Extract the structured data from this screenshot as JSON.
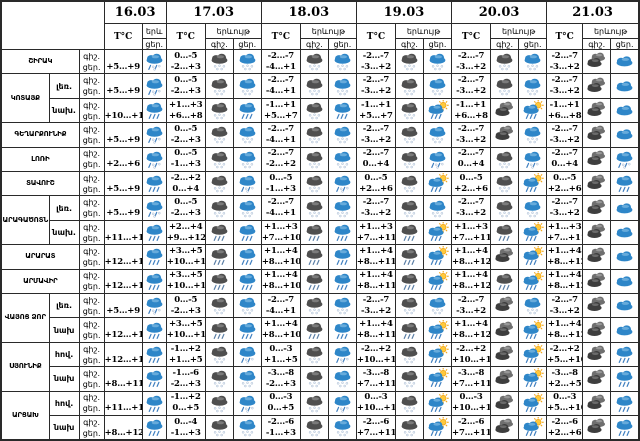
{
  "header": {
    "dates": [
      "16.03",
      "17.03",
      "18.03",
      "19.03",
      "20.03",
      "21.03"
    ],
    "temp_label": "T°C",
    "phenomenon_full": "երևույթ",
    "phenomenon_short": "երև",
    "night_abbr": "գիշ.",
    "day_abbr": "ցեր."
  },
  "icon_legend": {
    "r": "rain-cloud",
    "s": "snow-cloud",
    "rs": "sleet-cloud",
    "c": "cloud",
    "rd": "rain-cloud-dark",
    "sd": "snow-cloud-dark",
    "cd": "overcast-clouds-dark",
    "sr": "sun-rain-cloud"
  },
  "colors": {
    "cloud_blue": "#2e86c8",
    "cloud_dark": "#4f4f4f",
    "sun_yellow": "#ffc93d",
    "border": "#2a2a2a"
  },
  "rows": [
    {
      "region": "ՇԻՐԱԿ",
      "rowspan": 1,
      "sub": null,
      "cells": [
        {
          "day": "+5...+9",
          "day_icon": "rs"
        },
        {
          "night": "0...-5",
          "day": "-2...+3",
          "night_icon": "sd",
          "day_icon": "s"
        },
        {
          "night": "-2...-7",
          "day": "-4...+1",
          "night_icon": "sd",
          "day_icon": "s"
        },
        {
          "night": "-2...-7",
          "day": "-3...+2",
          "night_icon": "sd",
          "day_icon": "s"
        },
        {
          "night": "-2...-7",
          "day": "-3...+2",
          "night_icon": "sd",
          "day_icon": "s"
        },
        {
          "night": "-2...-7",
          "day": "-3...+2",
          "night_icon": "cd",
          "day_icon": "c"
        }
      ]
    },
    {
      "region": "ԿՈՏԱՅՔ",
      "rowspan": 2,
      "sub": "լեռ.",
      "cells": [
        {
          "day": "+5...+9",
          "day_icon": "rs"
        },
        {
          "night": "0...-5",
          "day": "-2...+3",
          "night_icon": "sd",
          "day_icon": "s"
        },
        {
          "night": "-2...-7",
          "day": "-4...+1",
          "night_icon": "sd",
          "day_icon": "s"
        },
        {
          "night": "-2...-7",
          "day": "-3...+2",
          "night_icon": "sd",
          "day_icon": "s"
        },
        {
          "night": "-2...-7",
          "day": "-3...+2",
          "night_icon": "sd",
          "day_icon": "s"
        },
        {
          "night": "-2...-7",
          "day": "-3...+2",
          "night_icon": "cd",
          "day_icon": "c"
        }
      ]
    },
    {
      "region": null,
      "rowspan": 1,
      "sub": "նախ.",
      "cells": [
        {
          "day": "+10...+12",
          "day_icon": "r"
        },
        {
          "night": "+1...+3",
          "day": "+6...+8",
          "night_icon": "sd",
          "day_icon": "r"
        },
        {
          "night": "-1...+1",
          "day": "+5...+7",
          "night_icon": "sd",
          "day_icon": "r"
        },
        {
          "night": "-1...+1",
          "day": "+5...+7",
          "night_icon": "sd",
          "day_icon": "sr"
        },
        {
          "night": "-1...+1",
          "day": "+6...+8",
          "night_icon": "cd",
          "day_icon": "sr"
        },
        {
          "night": "-1...+1",
          "day": "+6...+8",
          "night_icon": "cd",
          "day_icon": "c"
        }
      ]
    },
    {
      "region": "ԳԵՂԱՐՔՈՒՆԻՔ",
      "rowspan": 1,
      "sub": null,
      "cells": [
        {
          "day": "+5...+9",
          "day_icon": "rs"
        },
        {
          "night": "0...-5",
          "day": "-2...+3",
          "night_icon": "sd",
          "day_icon": "s"
        },
        {
          "night": "-2...-7",
          "day": "-4...+1",
          "night_icon": "sd",
          "day_icon": "s"
        },
        {
          "night": "-2...-7",
          "day": "-3...+2",
          "night_icon": "sd",
          "day_icon": "s"
        },
        {
          "night": "-2...-7",
          "day": "-3...+2",
          "night_icon": "cd",
          "day_icon": "s"
        },
        {
          "night": "-2...-7",
          "day": "-3...+2",
          "night_icon": "cd",
          "day_icon": "c"
        }
      ]
    },
    {
      "region": "ԼՈՌԻ",
      "rowspan": 1,
      "sub": null,
      "cells": [
        {
          "day": "+2...+6",
          "day_icon": "rs"
        },
        {
          "night": "0...-5",
          "day": "-1...+3",
          "night_icon": "sd",
          "day_icon": "s"
        },
        {
          "night": "-2...-7",
          "day": "-2...+2",
          "night_icon": "sd",
          "day_icon": "s"
        },
        {
          "night": "-2...-7",
          "day": "0...+4",
          "night_icon": "sd",
          "day_icon": "rs"
        },
        {
          "night": "-2...-7",
          "day": "0...+4",
          "night_icon": "sd",
          "day_icon": "rs"
        },
        {
          "night": "-2...-7",
          "day": "0...+4",
          "night_icon": "cd",
          "day_icon": "rs"
        }
      ]
    },
    {
      "region": "ՏԱՎՈՒՇ",
      "rowspan": 1,
      "sub": null,
      "cells": [
        {
          "day": "+5...+9",
          "day_icon": "r"
        },
        {
          "night": "-2...+2",
          "day": "0...+4",
          "night_icon": "sd",
          "day_icon": "rs"
        },
        {
          "night": "0...-5",
          "day": "-1...+3",
          "night_icon": "sd",
          "day_icon": "rs"
        },
        {
          "night": "0...-5",
          "day": "+2...+6",
          "night_icon": "sd",
          "day_icon": "sr"
        },
        {
          "night": "0...-5",
          "day": "+2...+6",
          "night_icon": "sd",
          "day_icon": "sr"
        },
        {
          "night": "0...-5",
          "day": "+2...+6",
          "night_icon": "cd",
          "day_icon": "r"
        }
      ]
    },
    {
      "region": "ԱՐԱԳԱԾՈՏՆ",
      "rowspan": 2,
      "sub": "լեռ.",
      "cells": [
        {
          "day": "+5...+9",
          "day_icon": "rs"
        },
        {
          "night": "0...-5",
          "day": "-2...+3",
          "night_icon": "sd",
          "day_icon": "s"
        },
        {
          "night": "-2...-7",
          "day": "-4...+1",
          "night_icon": "sd",
          "day_icon": "s"
        },
        {
          "night": "-2...-7",
          "day": "-3...+2",
          "night_icon": "sd",
          "day_icon": "s"
        },
        {
          "night": "-2...-7",
          "day": "-3...+2",
          "night_icon": "sd",
          "day_icon": "s"
        },
        {
          "night": "-2...-7",
          "day": "-3...+2",
          "night_icon": "cd",
          "day_icon": "c"
        }
      ]
    },
    {
      "region": null,
      "rowspan": 1,
      "sub": "նախ.",
      "cells": [
        {
          "day": "+11...+14",
          "day_icon": "r"
        },
        {
          "night": "+2...+4",
          "day": "+9...+12",
          "night_icon": "rd",
          "day_icon": "r"
        },
        {
          "night": "+1...+3",
          "day": "+7...+10",
          "night_icon": "rd",
          "day_icon": "r"
        },
        {
          "night": "+1...+3",
          "day": "+7...+11",
          "night_icon": "rd",
          "day_icon": "sr"
        },
        {
          "night": "+1...+3",
          "day": "+7...+11",
          "night_icon": "rd",
          "day_icon": "sr"
        },
        {
          "night": "+1...+3",
          "day": "+7...+11",
          "night_icon": "cd",
          "day_icon": "c"
        }
      ]
    },
    {
      "region": "ԱՐԱՐԱՏ",
      "rowspan": 1,
      "sub": null,
      "cells": [
        {
          "day": "+12...+15",
          "day_icon": "r"
        },
        {
          "night": "+3...+5",
          "day": "+10...+13",
          "night_icon": "rd",
          "day_icon": "r"
        },
        {
          "night": "+1...+4",
          "day": "+8...+10",
          "night_icon": "rd",
          "day_icon": "r"
        },
        {
          "night": "+1...+4",
          "day": "+8...+11",
          "night_icon": "rd",
          "day_icon": "sr"
        },
        {
          "night": "+1...+4",
          "day": "+8...+12",
          "night_icon": "cd",
          "day_icon": "sr"
        },
        {
          "night": "+1...+4",
          "day": "+8...+12",
          "night_icon": "cd",
          "day_icon": "c"
        }
      ]
    },
    {
      "region": "ԱՐՄԱՎԻՐ",
      "rowspan": 1,
      "sub": null,
      "cells": [
        {
          "day": "+12...+15",
          "day_icon": "r"
        },
        {
          "night": "+3...+5",
          "day": "+10...+13",
          "night_icon": "rd",
          "day_icon": "r"
        },
        {
          "night": "+1...+4",
          "day": "+8...+10",
          "night_icon": "rd",
          "day_icon": "r"
        },
        {
          "night": "+1...+4",
          "day": "+8...+11",
          "night_icon": "rd",
          "day_icon": "sr"
        },
        {
          "night": "+1...+4",
          "day": "+8...+12",
          "night_icon": "rd",
          "day_icon": "sr"
        },
        {
          "night": "+1...+4",
          "day": "+8...+12",
          "night_icon": "cd",
          "day_icon": "c"
        }
      ]
    },
    {
      "region": "ՎԱՅՈՑ ՁՈՐ",
      "rowspan": 2,
      "sub": "լեռ.",
      "cells": [
        {
          "day": "+5...+9",
          "day_icon": "rs"
        },
        {
          "night": "0...-5",
          "day": "-2...+3",
          "night_icon": "sd",
          "day_icon": "s"
        },
        {
          "night": "-2...-7",
          "day": "-4...+1",
          "night_icon": "sd",
          "day_icon": "s"
        },
        {
          "night": "-2...-7",
          "day": "-3...+2",
          "night_icon": "sd",
          "day_icon": "s"
        },
        {
          "night": "-2...-7",
          "day": "-3...+2",
          "night_icon": "cd",
          "day_icon": "s"
        },
        {
          "night": "-2...-7",
          "day": "-3...+2",
          "night_icon": "cd",
          "day_icon": "c"
        }
      ]
    },
    {
      "region": null,
      "rowspan": 1,
      "sub": "նախ",
      "cells": [
        {
          "day": "+12...+15",
          "day_icon": "r"
        },
        {
          "night": "+3...+5",
          "day": "+10...+13",
          "night_icon": "rd",
          "day_icon": "r"
        },
        {
          "night": "+1...+4",
          "day": "+8...+10",
          "night_icon": "rd",
          "day_icon": "r"
        },
        {
          "night": "+1...+4",
          "day": "+8...+11",
          "night_icon": "rd",
          "day_icon": "sr"
        },
        {
          "night": "+1...+4",
          "day": "+8...+12",
          "night_icon": "cd",
          "day_icon": "sr"
        },
        {
          "night": "+1...+4",
          "day": "+8...+12",
          "night_icon": "cd",
          "day_icon": "c"
        }
      ]
    },
    {
      "region": "ՍՅՈՒՆԻՔ",
      "rowspan": 2,
      "sub": "հով.",
      "cells": [
        {
          "day": "+12...+17",
          "day_icon": "r"
        },
        {
          "night": "-1...+2",
          "day": "+1...+5",
          "night_icon": "sd",
          "day_icon": "rs"
        },
        {
          "night": "0...-3",
          "day": "+1...+5",
          "night_icon": "sd",
          "day_icon": "rs"
        },
        {
          "night": "-2...+2",
          "day": "+10...+15",
          "night_icon": "sd",
          "day_icon": "sr"
        },
        {
          "night": "-2...+2",
          "day": "+10...+15",
          "night_icon": "cd",
          "day_icon": "sr"
        },
        {
          "night": "-2...+2",
          "day": "+5...+10",
          "night_icon": "cd",
          "day_icon": "r"
        }
      ]
    },
    {
      "region": null,
      "rowspan": 1,
      "sub": "նախ",
      "cells": [
        {
          "day": "+8...+11",
          "day_icon": "r"
        },
        {
          "night": "-1...-6",
          "day": "-2...+3",
          "night_icon": "sd",
          "day_icon": "s"
        },
        {
          "night": "-3...-8",
          "day": "-2...+3",
          "night_icon": "sd",
          "day_icon": "s"
        },
        {
          "night": "-3...-8",
          "day": "+7...+11",
          "night_icon": "sd",
          "day_icon": "sr"
        },
        {
          "night": "-3...-8",
          "day": "+7...+11",
          "night_icon": "cd",
          "day_icon": "sr"
        },
        {
          "night": "-3...-8",
          "day": "+2...+5",
          "night_icon": "cd",
          "day_icon": "r"
        }
      ]
    },
    {
      "region": "ԱՐՑԱԽ",
      "rowspan": 2,
      "sub": "հով.",
      "cells": [
        {
          "day": "+11...+16",
          "day_icon": "r"
        },
        {
          "night": "-1...+2",
          "day": "0...+5",
          "night_icon": "sd",
          "day_icon": "rs"
        },
        {
          "night": "0...-3",
          "day": "0...+5",
          "night_icon": "sd",
          "day_icon": "rs"
        },
        {
          "night": "0...-3",
          "day": "+10...+15",
          "night_icon": "sd",
          "day_icon": "sr"
        },
        {
          "night": "0...-3",
          "day": "+10...+15",
          "night_icon": "cd",
          "day_icon": "sr"
        },
        {
          "night": "0...-3",
          "day": "+5...+10",
          "night_icon": "cd",
          "day_icon": "r"
        }
      ]
    },
    {
      "region": null,
      "rowspan": 1,
      "sub": "նախ",
      "cells": [
        {
          "day": "+8...+12",
          "day_icon": "r"
        },
        {
          "night": "0...-4",
          "day": "-1...+3",
          "night_icon": "sd",
          "day_icon": "s"
        },
        {
          "night": "-2...-6",
          "day": "-1...+3",
          "night_icon": "sd",
          "day_icon": "s"
        },
        {
          "night": "-2...-6",
          "day": "+7...+11",
          "night_icon": "sd",
          "day_icon": "sr"
        },
        {
          "night": "-2...-6",
          "day": "+7...+11",
          "night_icon": "cd",
          "day_icon": "sr"
        },
        {
          "night": "-2...-6",
          "day": "+2...+6",
          "night_icon": "cd",
          "day_icon": "r"
        }
      ]
    }
  ]
}
